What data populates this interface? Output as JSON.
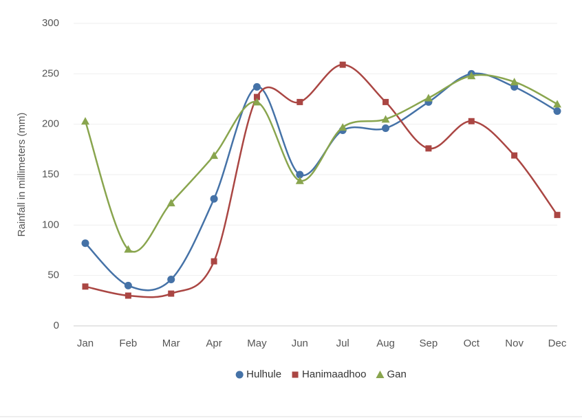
{
  "chart_data": {
    "type": "line",
    "y_label": "Rainfall in millimeters (mm)",
    "categories": [
      "Jan",
      "Feb",
      "Mar",
      "Apr",
      "May",
      "Jun",
      "Jul",
      "Aug",
      "Sep",
      "Oct",
      "Nov",
      "Dec"
    ],
    "series": [
      {
        "name": "Hulhule",
        "color": "#4572a7",
        "marker": "circle",
        "values": [
          82,
          40,
          46,
          126,
          237,
          150,
          194,
          196,
          222,
          250,
          237,
          213
        ]
      },
      {
        "name": "Hanimaadhoo",
        "color": "#aa4643",
        "marker": "square",
        "values": [
          39,
          30,
          32,
          64,
          227,
          222,
          259,
          222,
          176,
          203,
          169,
          110
        ]
      },
      {
        "name": "Gan",
        "color": "#89a54e",
        "marker": "triangle",
        "values": [
          203,
          76,
          122,
          169,
          222,
          144,
          197,
          205,
          226,
          248,
          242,
          220
        ]
      }
    ],
    "ylim": [
      0,
      300
    ],
    "yticks": [
      0,
      50,
      100,
      150,
      200,
      250,
      300
    ],
    "grid": true,
    "legend": "bottom"
  }
}
